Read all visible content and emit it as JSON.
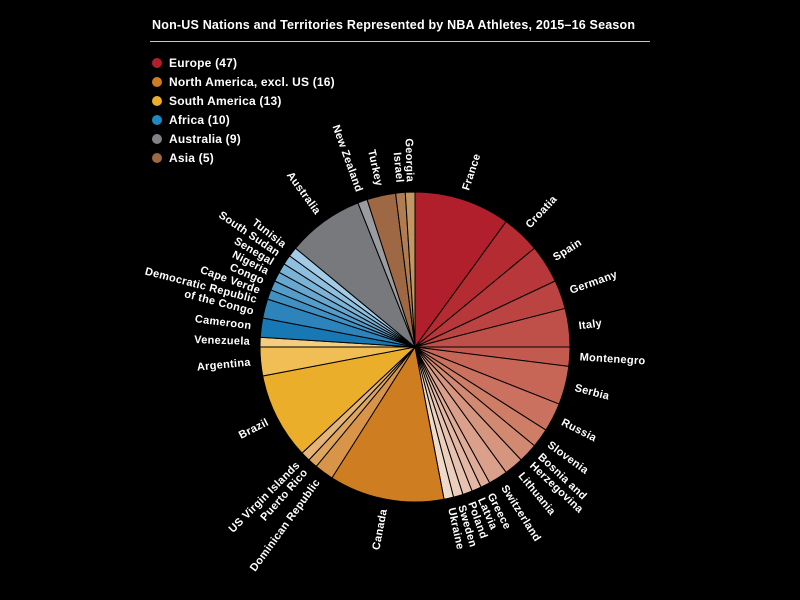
{
  "title": "Non-US Nations and Territories Represented by NBA Athletes, 2015–16 Season",
  "legend": {
    "items": [
      {
        "label": "Europe (47)",
        "region": "Europe",
        "count": 47,
        "color": "#B01F2B"
      },
      {
        "label": "North America, excl. US (16)",
        "region": "North America, excl. US",
        "count": 16,
        "color": "#CE7D20"
      },
      {
        "label": "South America (13)",
        "region": "South America",
        "count": 13,
        "color": "#EBAE2B"
      },
      {
        "label": "Africa (10)",
        "region": "Africa",
        "count": 10,
        "color": "#2089C2"
      },
      {
        "label": "Australia (9)",
        "region": "Australia",
        "count": 9,
        "color": "#808285"
      },
      {
        "label": "Asia (5)",
        "region": "Asia",
        "count": 5,
        "color": "#9D6843"
      }
    ]
  },
  "chart_data": {
    "type": "pie",
    "title": "Non-US Nations and Territories Represented by NBA Athletes, 2015–16 Season",
    "unit": "athletes",
    "total": 100,
    "direction": "clockwise",
    "start_angle_deg": 0,
    "legend_position": "top-left",
    "region_totals": [
      {
        "region": "Europe",
        "count": 47
      },
      {
        "region": "North America, excl. US",
        "count": 16
      },
      {
        "region": "South America",
        "count": 13
      },
      {
        "region": "Africa",
        "count": 10
      },
      {
        "region": "Australia",
        "count": 9
      },
      {
        "region": "Asia",
        "count": 5
      }
    ],
    "slices": [
      {
        "label": "France",
        "region": "Europe",
        "value": 10,
        "color": "#B01F2B"
      },
      {
        "label": "Croatia",
        "region": "Europe",
        "value": 4,
        "color": "#B42B32"
      },
      {
        "label": "Spain",
        "region": "Europe",
        "value": 4,
        "color": "#B8373A"
      },
      {
        "label": "Germany",
        "region": "Europe",
        "value": 3,
        "color": "#BB4341"
      },
      {
        "label": "Italy",
        "region": "Europe",
        "value": 4,
        "color": "#BF4F49"
      },
      {
        "label": "Montenegro",
        "region": "Europe",
        "value": 2,
        "color": "#C35A50"
      },
      {
        "label": "Serbia",
        "region": "Europe",
        "value": 4,
        "color": "#C76657"
      },
      {
        "label": "Russia",
        "region": "Europe",
        "value": 3,
        "color": "#CA725F"
      },
      {
        "label": "Slovenia",
        "region": "Europe",
        "value": 2,
        "color": "#CE7E66"
      },
      {
        "label": "Bosnia and Herzegovina",
        "region": "Europe",
        "value": 2,
        "color": "#D28972",
        "lines": [
          "Bosnia and",
          "Herzegovina"
        ]
      },
      {
        "label": "Lithuania",
        "region": "Europe",
        "value": 2,
        "color": "#D6957F"
      },
      {
        "label": "Switzerland",
        "region": "Europe",
        "value": 2,
        "color": "#DAA08B"
      },
      {
        "label": "Greece",
        "region": "Europe",
        "value": 1,
        "color": "#DFAC97"
      },
      {
        "label": "Latvia",
        "region": "Europe",
        "value": 1,
        "color": "#E3B7A3"
      },
      {
        "label": "Poland",
        "region": "Europe",
        "value": 1,
        "color": "#E7C2B0"
      },
      {
        "label": "Sweden",
        "region": "Europe",
        "value": 1,
        "color": "#EBCEBC"
      },
      {
        "label": "Ukraine",
        "region": "Europe",
        "value": 1,
        "color": "#EFD9C8"
      },
      {
        "label": "Canada",
        "region": "North America, excl. US",
        "value": 12,
        "color": "#CE7D20"
      },
      {
        "label": "Dominican Republic",
        "region": "North America, excl. US",
        "value": 2,
        "color": "#D8954A"
      },
      {
        "label": "Puerto Rico",
        "region": "North America, excl. US",
        "value": 1,
        "color": "#DEA55F"
      },
      {
        "label": "US Virgin Islands",
        "region": "North America, excl. US",
        "value": 1,
        "color": "#E4B576"
      },
      {
        "label": "Brazil",
        "region": "South America",
        "value": 9,
        "color": "#EBAE2B"
      },
      {
        "label": "Argentina",
        "region": "South America",
        "value": 3,
        "color": "#F0BE55"
      },
      {
        "label": "Venezuela",
        "region": "South America",
        "value": 1,
        "color": "#F4CD7E"
      },
      {
        "label": "Cameroon",
        "region": "Africa",
        "value": 2,
        "color": "#1878B4"
      },
      {
        "label": "Democratic Republic of the Congo",
        "region": "Africa",
        "value": 2,
        "color": "#2C84BB",
        "lines": [
          "Democratic Republic",
          "of the Congo"
        ]
      },
      {
        "label": "Cape Verde",
        "region": "Africa",
        "value": 1,
        "color": "#4090C2"
      },
      {
        "label": "Congo",
        "region": "Africa",
        "value": 1,
        "color": "#549CC9"
      },
      {
        "label": "Nigeria",
        "region": "Africa",
        "value": 1,
        "color": "#67A7D0"
      },
      {
        "label": "Senegal",
        "region": "Africa",
        "value": 1,
        "color": "#7BB3D7"
      },
      {
        "label": "South Sudan",
        "region": "Africa",
        "value": 1,
        "color": "#8FBFDE"
      },
      {
        "label": "Tunisia",
        "region": "Africa",
        "value": 1,
        "color": "#A3CBE5"
      },
      {
        "label": "Australia",
        "region": "Australia",
        "value": 8,
        "color": "#77797C"
      },
      {
        "label": "New Zealand",
        "region": "Australia",
        "value": 1,
        "color": "#9B9C9F"
      },
      {
        "label": "Turkey",
        "region": "Asia",
        "value": 3,
        "color": "#9D6843"
      },
      {
        "label": "Israel",
        "region": "Asia",
        "value": 1,
        "color": "#B07C52"
      },
      {
        "label": "Georgia",
        "region": "Asia",
        "value": 1,
        "color": "#C29763"
      }
    ]
  },
  "colors": {
    "background": "#000000",
    "text": "#FFFFFF",
    "divider": "#C8C8C8",
    "slice_separator": "#000000"
  }
}
